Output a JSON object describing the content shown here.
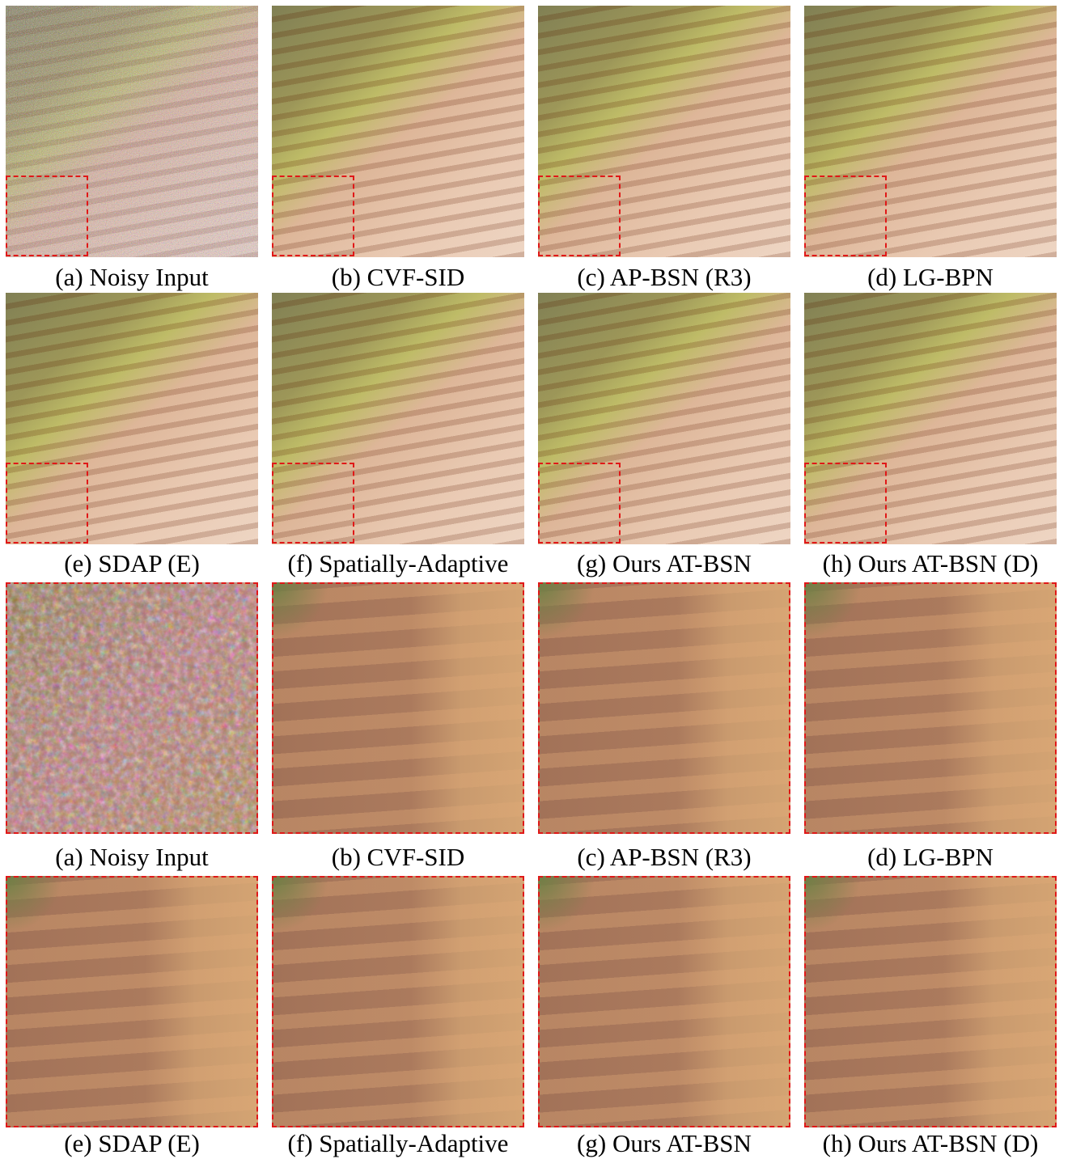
{
  "figure": {
    "rows": [
      [
        "(a) Noisy Input",
        "(b) CVF-SID",
        "(c) AP-BSN (R3)",
        "(d) LG-BPN"
      ],
      [
        "(e) SDAP (E)",
        "(f) Spatially-Adaptive",
        "(g) Ours AT-BSN",
        "(h) Ours AT-BSN (D)"
      ],
      [
        "(a) Noisy Input",
        "(b) CVF-SID",
        "(c) AP-BSN (R3)",
        "(d) LG-BPN"
      ],
      [
        "(e) SDAP (E)",
        "(f) Spatially-Adaptive",
        "(g) Ours AT-BSN",
        "(h) Ours AT-BSN (D)"
      ]
    ]
  }
}
